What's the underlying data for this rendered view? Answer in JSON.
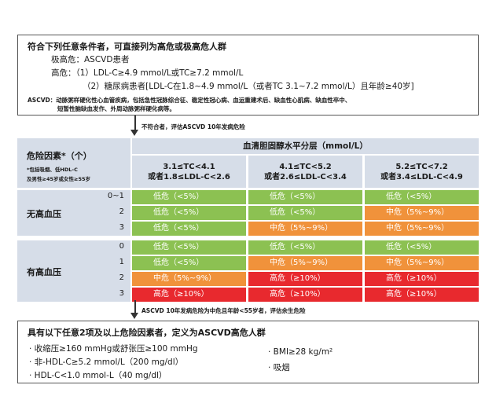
{
  "top_box": {
    "title": "符合下列任意条件者，可直接列为高危或极高危人群",
    "very_high": "极高危：ASCVD患者",
    "high_1": "高危：（1）LDL-C≥4.9 mmol/L或TC≥7.2 mmol/L",
    "high_2": "（2）糖尿病患者[LDL-C在1.8~4.9 mmol/L（或者TC 3.1~7.2 mmol/L）且年龄≥40岁]",
    "ascvd_1": "ASCVD：动脉粥样硬化性心血管疾病，包括急性冠脉综合征、稳定性冠心病、血运重建术后、缺血性心肌病、缺血性卒中、",
    "ascvd_2": "短暂性脑缺血发作、外周动脉粥样硬化病等。"
  },
  "arrow1_label": "不符合者，评估ASCVD 10年发病危险",
  "arrow2_label": "ASCVD 10年发病危险为中危且年龄<55岁者，评估余生危险",
  "table": {
    "header_main": "血清胆固醇水平分层（mmol/L）",
    "col_headers": [
      {
        "l1": "3.1≤TC<4.1",
        "l2": "或者1.8≤LDL-C<2.6"
      },
      {
        "l1": "4.1≤TC<5.2",
        "l2": "或者2.6≤LDL-C<3.4"
      },
      {
        "l1": "5.2≤TC<7.2",
        "l2": "或者3.4≤LDL-C<4.9"
      }
    ],
    "risk_header": "危险因素*（个）",
    "risk_note_1": "*包括吸烟、低HDL-C",
    "risk_note_2": "及男性≥45岁或女性≥55岁",
    "groups": [
      {
        "label": "无高血压",
        "rows": [
          {
            "factors": "0~1",
            "cells": [
              {
                "text": "低危（<5%）",
                "level": "low"
              },
              {
                "text": "低危（<5%）",
                "level": "low"
              },
              {
                "text": "低危（<5%）",
                "level": "low"
              }
            ]
          },
          {
            "factors": "2",
            "cells": [
              {
                "text": "低危（<5%）",
                "level": "low"
              },
              {
                "text": "低危（<5%）",
                "level": "low"
              },
              {
                "text": "中危（5%~9%）",
                "level": "mid"
              }
            ]
          },
          {
            "factors": "3",
            "cells": [
              {
                "text": "低危（<5%）",
                "level": "low"
              },
              {
                "text": "中危（5%~9%）",
                "level": "mid"
              },
              {
                "text": "中危（5%~9%）",
                "level": "mid"
              }
            ]
          }
        ]
      },
      {
        "label": "有高血压",
        "rows": [
          {
            "factors": "0",
            "cells": [
              {
                "text": "低危（<5%）",
                "level": "low"
              },
              {
                "text": "低危（<5%）",
                "level": "low"
              },
              {
                "text": "低危（<5%）",
                "level": "low"
              }
            ]
          },
          {
            "factors": "1",
            "cells": [
              {
                "text": "低危（<5%）",
                "level": "low"
              },
              {
                "text": "中危（5%~9%）",
                "level": "mid"
              },
              {
                "text": "中危（5%~9%）",
                "level": "mid"
              }
            ]
          },
          {
            "factors": "2",
            "cells": [
              {
                "text": "中危（5%~9%）",
                "level": "mid"
              },
              {
                "text": "高危（≥10%）",
                "level": "high"
              },
              {
                "text": "高危（≥10%）",
                "level": "high"
              }
            ]
          },
          {
            "factors": "3",
            "cells": [
              {
                "text": "高危（≥10%）",
                "level": "high"
              },
              {
                "text": "高危（≥10%）",
                "level": "high"
              },
              {
                "text": "高危（≥10%）",
                "level": "high"
              }
            ]
          }
        ]
      }
    ],
    "colors": {
      "low": "#8cc152",
      "mid": "#f0923b",
      "high": "#e8292e",
      "header": "#d6dde8"
    }
  },
  "bottom_box": {
    "title": "具有以下任意2项及以上危险因素者，定义为ASCVD高危人群",
    "items_left": [
      "· 收缩压≥160 mmHg或舒张压≥100 mmHg",
      "· 非-HDL-C≥5.2 mmol/L（200 mg/dl）",
      "· HDL-C<1.0 mmol-L（40 mg/dl）"
    ],
    "items_right": [
      "· BMI≥28 kg/m²",
      "· 吸烟"
    ]
  }
}
